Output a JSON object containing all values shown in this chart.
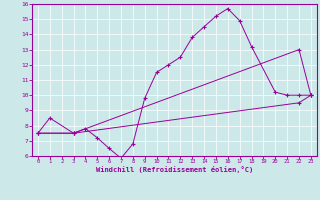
{
  "xlabel": "Windchill (Refroidissement éolien,°C)",
  "line_color": "#990099",
  "bg_color": "#cce8e8",
  "xlim": [
    -0.5,
    23.5
  ],
  "ylim": [
    6,
    16
  ],
  "yticks": [
    6,
    7,
    8,
    9,
    10,
    11,
    12,
    13,
    14,
    15,
    16
  ],
  "xticks": [
    0,
    1,
    2,
    3,
    4,
    5,
    6,
    7,
    8,
    9,
    10,
    11,
    12,
    13,
    14,
    15,
    16,
    17,
    18,
    19,
    20,
    21,
    22,
    23
  ],
  "line1_x": [
    0,
    1,
    3,
    4,
    5,
    6,
    7,
    8,
    9,
    10,
    11,
    12,
    13,
    14,
    15,
    16,
    17,
    18,
    20,
    21,
    22,
    23
  ],
  "line1_y": [
    7.5,
    8.5,
    7.5,
    7.8,
    7.2,
    6.5,
    5.85,
    6.8,
    9.8,
    11.5,
    12.0,
    12.5,
    13.8,
    14.5,
    15.2,
    15.7,
    14.9,
    13.2,
    10.2,
    10.0,
    10.0,
    10.0
  ],
  "line2_x": [
    0,
    3,
    22,
    23
  ],
  "line2_y": [
    7.5,
    7.5,
    9.5,
    10.0
  ],
  "line3_x": [
    0,
    3,
    22,
    23
  ],
  "line3_y": [
    7.5,
    7.5,
    13.0,
    10.0
  ],
  "marker": "+"
}
